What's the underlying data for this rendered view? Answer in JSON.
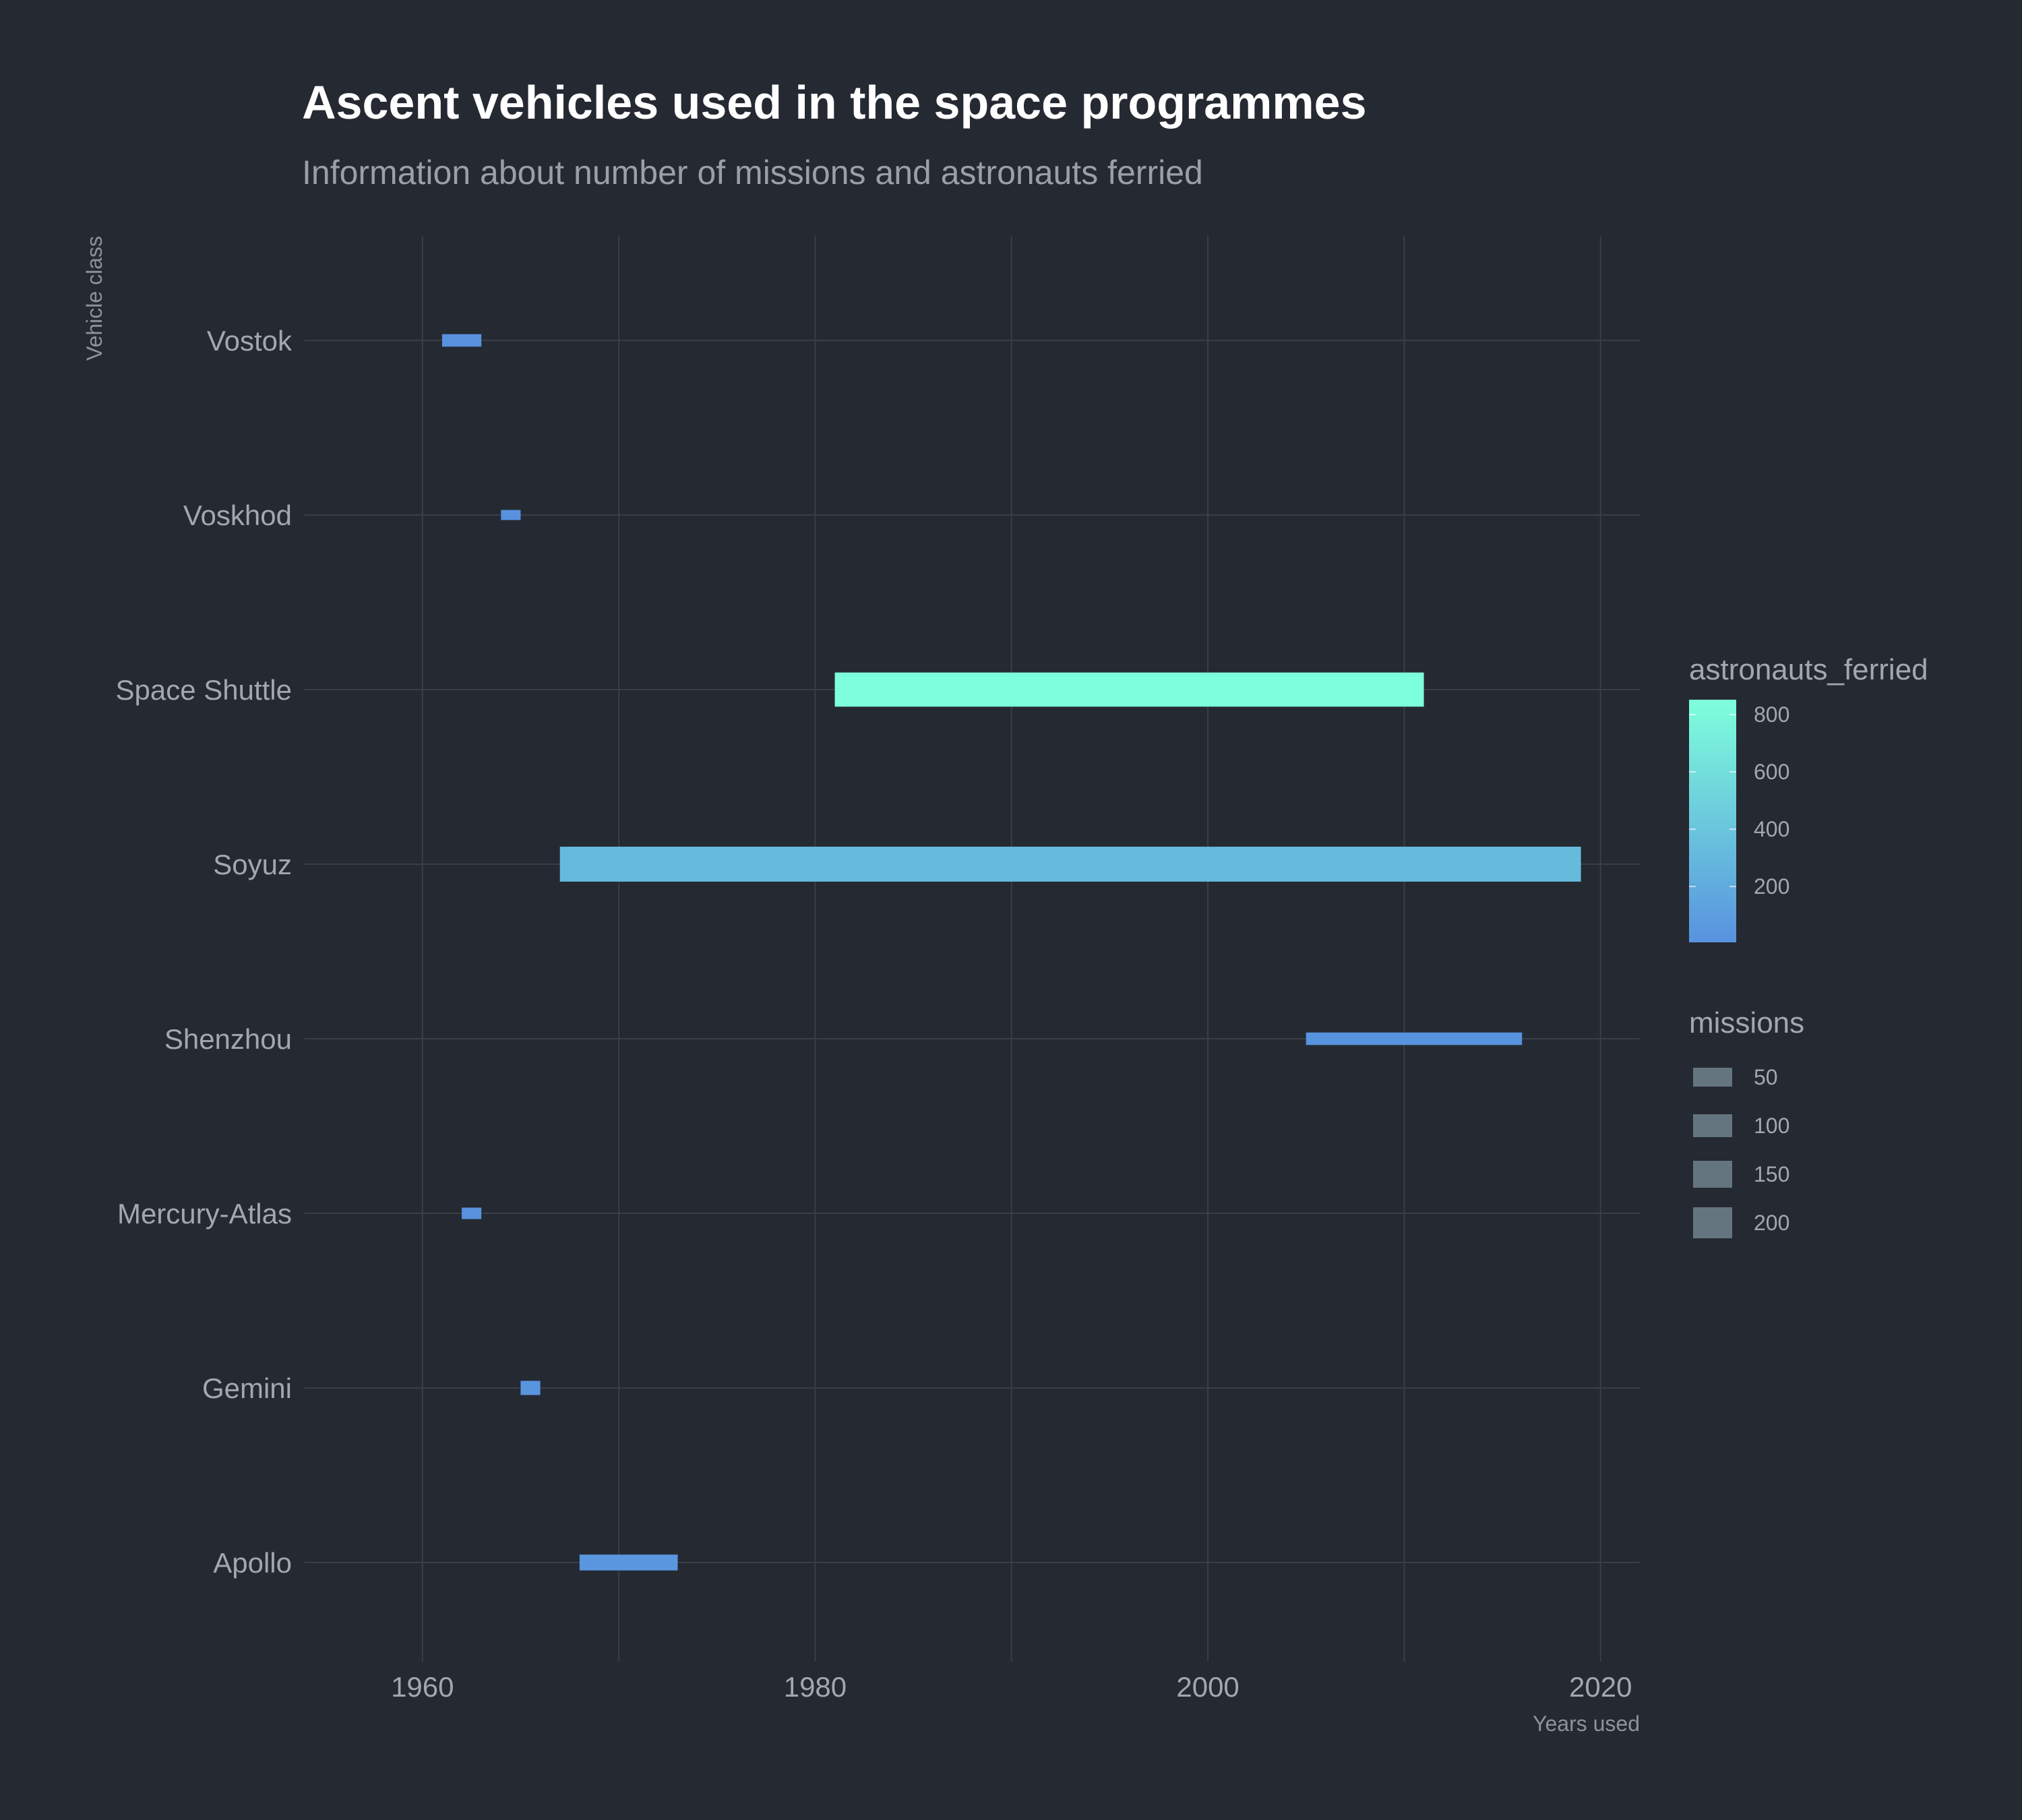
{
  "chart_data": {
    "type": "bar",
    "orientation": "horizontal-range",
    "title": "Ascent vehicles used in the space programmes",
    "subtitle": "Information about number of missions and astronauts ferried",
    "xlabel": "Years used",
    "ylabel": "Vehicle class",
    "xlim": [
      1954,
      2022
    ],
    "x_ticks": [
      1960,
      1980,
      2000,
      2020
    ],
    "grid": true,
    "legend_position": "right",
    "categories": [
      "Vostok",
      "Voskhod",
      "Space Shuttle",
      "Soyuz",
      "Shenzhou",
      "Mercury-Atlas",
      "Gemini",
      "Apollo"
    ],
    "bars": [
      {
        "category": "Vostok",
        "start": 1961,
        "end": 1963,
        "missions": 6,
        "astronauts_ferried": 6
      },
      {
        "category": "Voskhod",
        "start": 1964,
        "end": 1965,
        "missions": 2,
        "astronauts_ferried": 5
      },
      {
        "category": "Space Shuttle",
        "start": 1981,
        "end": 2011,
        "missions": 135,
        "astronauts_ferried": 852
      },
      {
        "category": "Soyuz",
        "start": 1967,
        "end": 2019,
        "missions": 143,
        "astronauts_ferried": 325
      },
      {
        "category": "Shenzhou",
        "start": 2005,
        "end": 2016,
        "missions": 6,
        "astronauts_ferried": 12
      },
      {
        "category": "Mercury-Atlas",
        "start": 1962,
        "end": 1963,
        "missions": 4,
        "astronauts_ferried": 4
      },
      {
        "category": "Gemini",
        "start": 1965,
        "end": 1966,
        "missions": 10,
        "astronauts_ferried": 20
      },
      {
        "category": "Apollo",
        "start": 1968,
        "end": 1973,
        "missions": 15,
        "astronauts_ferried": 45
      }
    ],
    "color_legend": {
      "title": "astronauts_ferried",
      "ticks": [
        200,
        400,
        600,
        800
      ],
      "range": [
        5,
        852
      ],
      "low_color": "#5892df",
      "high_color": "#7effdb"
    },
    "size_legend": {
      "title": "missions",
      "breaks": [
        50,
        100,
        150,
        200
      ],
      "key_color": "#65757f"
    }
  }
}
